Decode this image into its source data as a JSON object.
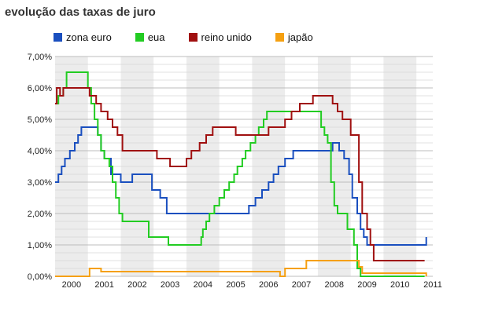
{
  "title": "evolução das taxas de juro",
  "chart_data": {
    "type": "line",
    "step": true,
    "title": "evolução das taxas de juro",
    "xlabel": "",
    "ylabel": "",
    "xlim": [
      1999.5,
      2011
    ],
    "ylim": [
      0,
      7
    ],
    "x_ticks": [
      "2000",
      "2001",
      "2002",
      "2003",
      "2004",
      "2005",
      "2006",
      "2007",
      "2008",
      "2009",
      "2010",
      "2011"
    ],
    "y_ticks": [
      "0,00%",
      "1,00%",
      "2,00%",
      "3,00%",
      "4,00%",
      "5,00%",
      "6,00%",
      "7,00%"
    ],
    "grid": true,
    "legend_position": "top",
    "series": [
      {
        "name": "zona euro",
        "color": "#1a4fbf",
        "points": [
          [
            1999.5,
            3.0
          ],
          [
            1999.6,
            3.25
          ],
          [
            1999.7,
            3.5
          ],
          [
            1999.8,
            3.75
          ],
          [
            1999.95,
            4.0
          ],
          [
            2000.1,
            4.25
          ],
          [
            2000.2,
            4.5
          ],
          [
            2000.3,
            4.75
          ],
          [
            2000.8,
            4.5
          ],
          [
            2000.9,
            4.0
          ],
          [
            2001.0,
            3.75
          ],
          [
            2001.2,
            3.25
          ],
          [
            2001.5,
            3.0
          ],
          [
            2001.7,
            3.0
          ],
          [
            2001.85,
            3.25
          ],
          [
            2002.45,
            2.75
          ],
          [
            2002.7,
            2.5
          ],
          [
            2002.9,
            2.0
          ],
          [
            2003.5,
            2.0
          ],
          [
            2005.4,
            2.25
          ],
          [
            2005.6,
            2.5
          ],
          [
            2005.8,
            2.75
          ],
          [
            2006.0,
            3.0
          ],
          [
            2006.15,
            3.25
          ],
          [
            2006.3,
            3.5
          ],
          [
            2006.5,
            3.75
          ],
          [
            2006.75,
            4.0
          ],
          [
            2007.5,
            4.0
          ],
          [
            2007.95,
            4.25
          ],
          [
            2008.15,
            4.0
          ],
          [
            2008.3,
            3.75
          ],
          [
            2008.45,
            3.25
          ],
          [
            2008.55,
            2.5
          ],
          [
            2008.7,
            2.0
          ],
          [
            2008.8,
            1.5
          ],
          [
            2008.9,
            1.25
          ],
          [
            2009.0,
            1.0
          ],
          [
            2010.75,
            1.0
          ],
          [
            2010.8,
            1.25
          ]
        ]
      },
      {
        "name": "eua",
        "color": "#22cc22",
        "points": [
          [
            1999.5,
            5.5
          ],
          [
            1999.6,
            5.75
          ],
          [
            1999.75,
            6.0
          ],
          [
            1999.85,
            6.5
          ],
          [
            2000.5,
            6.0
          ],
          [
            2000.6,
            5.5
          ],
          [
            2000.7,
            5.0
          ],
          [
            2000.8,
            4.5
          ],
          [
            2000.9,
            4.0
          ],
          [
            2001.0,
            3.75
          ],
          [
            2001.15,
            3.5
          ],
          [
            2001.25,
            3.0
          ],
          [
            2001.35,
            2.5
          ],
          [
            2001.45,
            2.0
          ],
          [
            2001.55,
            1.75
          ],
          [
            2002.35,
            1.25
          ],
          [
            2002.95,
            1.0
          ],
          [
            2003.95,
            1.25
          ],
          [
            2004.0,
            1.5
          ],
          [
            2004.1,
            1.75
          ],
          [
            2004.2,
            2.0
          ],
          [
            2004.35,
            2.25
          ],
          [
            2004.5,
            2.5
          ],
          [
            2004.65,
            2.75
          ],
          [
            2004.8,
            3.0
          ],
          [
            2004.95,
            3.25
          ],
          [
            2005.05,
            3.5
          ],
          [
            2005.2,
            3.75
          ],
          [
            2005.3,
            4.0
          ],
          [
            2005.45,
            4.25
          ],
          [
            2005.6,
            4.5
          ],
          [
            2005.7,
            4.75
          ],
          [
            2005.85,
            5.0
          ],
          [
            2005.95,
            5.25
          ],
          [
            2007.6,
            4.75
          ],
          [
            2007.7,
            4.5
          ],
          [
            2007.8,
            4.25
          ],
          [
            2007.9,
            3.0
          ],
          [
            2008.0,
            2.25
          ],
          [
            2008.1,
            2.0
          ],
          [
            2008.4,
            1.5
          ],
          [
            2008.6,
            1.0
          ],
          [
            2008.7,
            0.25
          ],
          [
            2008.8,
            0.0
          ],
          [
            2010.75,
            0.0
          ]
        ]
      },
      {
        "name": "reino unido",
        "color": "#a01010",
        "points": [
          [
            1999.5,
            5.5
          ],
          [
            1999.55,
            6.0
          ],
          [
            1999.65,
            5.75
          ],
          [
            1999.75,
            6.0
          ],
          [
            2000.55,
            5.75
          ],
          [
            2000.75,
            5.5
          ],
          [
            2000.9,
            5.25
          ],
          [
            2001.1,
            5.0
          ],
          [
            2001.25,
            4.75
          ],
          [
            2001.4,
            4.5
          ],
          [
            2001.55,
            4.0
          ],
          [
            2002.6,
            3.75
          ],
          [
            2003.0,
            3.5
          ],
          [
            2003.5,
            3.75
          ],
          [
            2003.65,
            4.0
          ],
          [
            2003.9,
            4.25
          ],
          [
            2004.1,
            4.5
          ],
          [
            2004.3,
            4.75
          ],
          [
            2005.0,
            4.5
          ],
          [
            2006.0,
            4.75
          ],
          [
            2006.5,
            5.0
          ],
          [
            2006.7,
            5.25
          ],
          [
            2006.95,
            5.5
          ],
          [
            2007.35,
            5.75
          ],
          [
            2007.95,
            5.5
          ],
          [
            2008.1,
            5.25
          ],
          [
            2008.25,
            5.0
          ],
          [
            2008.5,
            4.5
          ],
          [
            2008.75,
            3.0
          ],
          [
            2008.85,
            2.0
          ],
          [
            2009.0,
            1.5
          ],
          [
            2009.1,
            1.0
          ],
          [
            2009.2,
            0.5
          ],
          [
            2010.75,
            0.5
          ]
        ]
      },
      {
        "name": "japão",
        "color": "#f5a011",
        "points": [
          [
            1999.5,
            0.0
          ],
          [
            2000.55,
            0.25
          ],
          [
            2000.9,
            0.15
          ],
          [
            2006.35,
            0.0
          ],
          [
            2006.5,
            0.25
          ],
          [
            2007.15,
            0.5
          ],
          [
            2008.75,
            0.3
          ],
          [
            2008.85,
            0.1
          ],
          [
            2010.75,
            0.1
          ],
          [
            2010.8,
            0.0
          ]
        ]
      }
    ]
  }
}
